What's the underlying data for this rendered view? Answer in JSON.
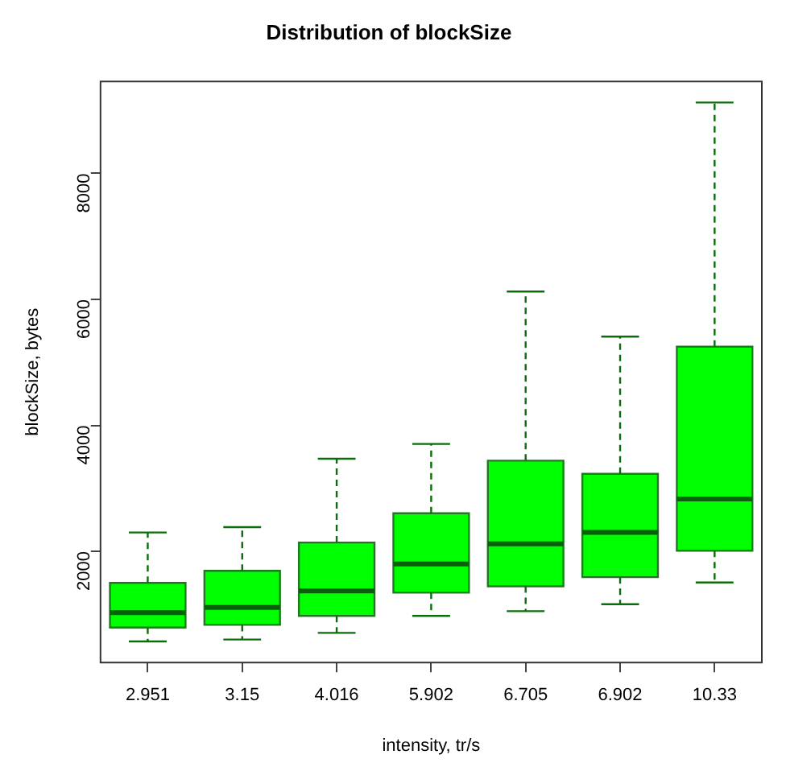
{
  "chart_data": {
    "type": "box",
    "title": "Distribution of blockSize",
    "xlabel": "intensity, tr/s",
    "ylabel": "blockSize, bytes",
    "categories": [
      "2.951",
      "3.15",
      "4.016",
      "5.902",
      "6.705",
      "6.902",
      "10.33"
    ],
    "series": [
      {
        "color": "#00ff00",
        "boxes": [
          {
            "low": 570,
            "q1": 790,
            "median": 1025,
            "q3": 1500,
            "high": 2300
          },
          {
            "low": 600,
            "q1": 833,
            "median": 1110,
            "q3": 1690,
            "high": 2385
          },
          {
            "low": 705,
            "q1": 975,
            "median": 1370,
            "q3": 2140,
            "high": 3470
          },
          {
            "low": 975,
            "q1": 1345,
            "median": 1800,
            "q3": 2605,
            "high": 3705
          },
          {
            "low": 1050,
            "q1": 1445,
            "median": 2120,
            "q3": 3440,
            "high": 6125
          },
          {
            "low": 1160,
            "q1": 1590,
            "median": 2300,
            "q3": 3230,
            "high": 5410
          },
          {
            "low": 1505,
            "q1": 2010,
            "median": 2830,
            "q3": 5250,
            "high": 9125
          }
        ]
      }
    ],
    "ylim": [
      235,
      9460
    ],
    "yticks": [
      2000,
      4000,
      6000,
      8000
    ],
    "grid": false,
    "legend": false,
    "line_style": "dashed"
  }
}
